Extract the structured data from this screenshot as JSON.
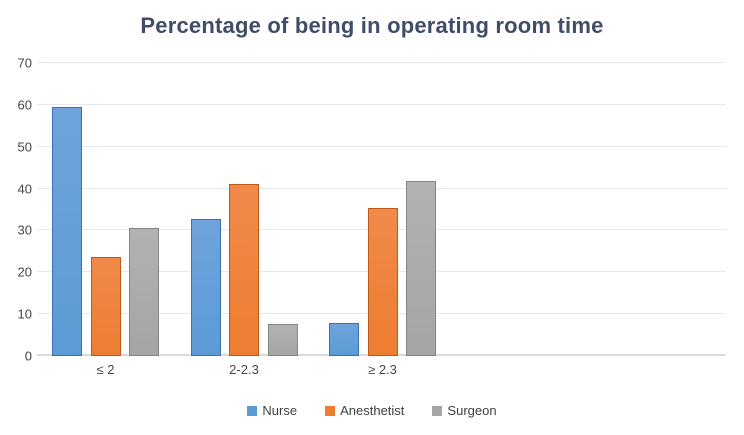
{
  "title": "Percentage of being in operating room time",
  "chart_data": {
    "type": "bar",
    "title": "Percentage of being in operating room time",
    "categories": [
      "≤ 2",
      "2-2.3",
      "≥ 2.3"
    ],
    "series": [
      {
        "name": "Nurse",
        "color": "#5B9BD5",
        "color_light": "#6FA3DD",
        "border": "#3E6FB5",
        "values": [
          59.5,
          32.7,
          8.0
        ]
      },
      {
        "name": "Anesthetist",
        "color": "#ED7D31",
        "color_light": "#F08A4A",
        "border": "#C05A17",
        "values": [
          23.7,
          41.2,
          35.4
        ]
      },
      {
        "name": "Surgeon",
        "color": "#A5A5A5",
        "color_light": "#B2B2B2",
        "border": "#858585",
        "values": [
          30.6,
          7.7,
          41.8
        ]
      }
    ],
    "xlabel": "",
    "ylabel": "",
    "ylim": [
      0,
      70
    ],
    "yticks": [
      0,
      10,
      20,
      30,
      40,
      50,
      60,
      70
    ],
    "grid": true,
    "legend_position": "bottom"
  },
  "colors": {
    "title_text": "#3F4D68",
    "axis_text": "#474747",
    "gridline": "#E5E8EF",
    "baseline": "#D5DAE3",
    "background": "#FFFFFF"
  }
}
